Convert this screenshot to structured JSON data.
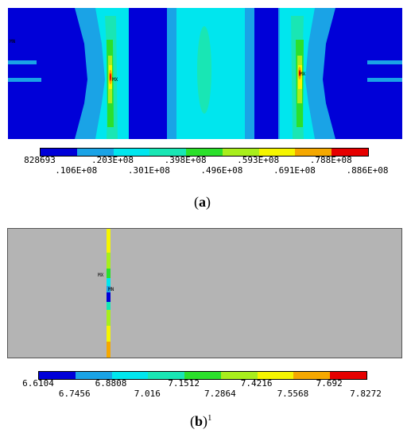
{
  "panel_a": {
    "markers": {
      "mx_left": "MX",
      "mx_right": "MX",
      "mn": "MN"
    },
    "legend": {
      "colors": [
        "#0000d8",
        "#1aa3e6",
        "#00e6ee",
        "#19e6b4",
        "#2be02b",
        "#a8ee1c",
        "#f5f500",
        "#f5a800",
        "#e60000"
      ],
      "labels_top": [
        "828693",
        ".203E+08",
        ".398E+08",
        ".593E+08",
        ".788E+08"
      ],
      "labels_bottom": [
        ".106E+08",
        ".301E+08",
        ".496E+08",
        ".691E+08",
        ".886E+08"
      ]
    },
    "caption": {
      "open": "(",
      "letter": "a",
      "close": ")"
    }
  },
  "panel_b": {
    "markers": {
      "mx": "MX",
      "mn": "MN"
    },
    "legend": {
      "colors": [
        "#0000d8",
        "#1aa3e6",
        "#00e6ee",
        "#19e6b4",
        "#2be02b",
        "#a8ee1c",
        "#f5f500",
        "#f5a800",
        "#e60000"
      ],
      "labels_top": [
        "6.6104",
        "6.8808",
        "7.1512",
        "7.4216",
        "7.692"
      ],
      "labels_bottom": [
        "6.7456",
        "7.016",
        "7.2864",
        "7.5568",
        "7.8272"
      ]
    },
    "caption": {
      "open": "(",
      "letter": "b",
      "close": ")",
      "superscript": "1"
    }
  }
}
